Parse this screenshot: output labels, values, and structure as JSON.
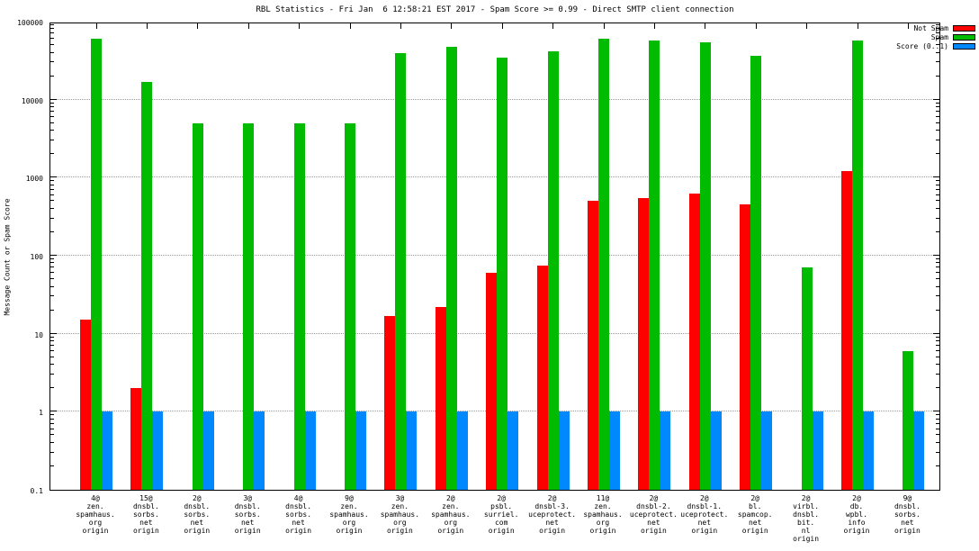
{
  "chart_data": {
    "type": "bar",
    "title": "RBL Statistics - Fri Jan  6 12:58:21 EST 2017 - Spam Score >= 0.99 - Direct SMTP client connection",
    "ylabel": "Message Count or Spam Score",
    "yscale": "log",
    "ylim": [
      0.1,
      100000
    ],
    "grid": true,
    "legend_position": "top-right",
    "yticks": [
      {
        "value": 100000,
        "label": "100000"
      },
      {
        "value": 10000,
        "label": "10000"
      },
      {
        "value": 1000,
        "label": "1000"
      },
      {
        "value": 100,
        "label": "100"
      },
      {
        "value": 10,
        "label": "10"
      },
      {
        "value": 1,
        "label": "1"
      },
      {
        "value": 0.1,
        "label": "0.1"
      }
    ],
    "categories": [
      [
        "4@",
        "zen.",
        "spamhaus.",
        "org",
        "origin"
      ],
      [
        "15@",
        "dnsbl.",
        "sorbs.",
        "net",
        "origin"
      ],
      [
        "2@",
        "dnsbl.",
        "sorbs.",
        "net",
        "origin"
      ],
      [
        "3@",
        "dnsbl.",
        "sorbs.",
        "net",
        "origin"
      ],
      [
        "4@",
        "dnsbl.",
        "sorbs.",
        "net",
        "origin"
      ],
      [
        "9@",
        "zen.",
        "spamhaus.",
        "org",
        "origin"
      ],
      [
        "3@",
        "zen.",
        "spamhaus.",
        "org",
        "origin"
      ],
      [
        "2@",
        "zen.",
        "spamhaus.",
        "org",
        "origin"
      ],
      [
        "2@",
        "psbl.",
        "surriel.",
        "com",
        "origin"
      ],
      [
        "2@",
        "dnsbl-3.",
        "uceprotect.",
        "net",
        "origin"
      ],
      [
        "11@",
        "zen.",
        "spamhaus.",
        "org",
        "origin"
      ],
      [
        "2@",
        "dnsbl-2.",
        "uceprotect.",
        "net",
        "origin"
      ],
      [
        "2@",
        "dnsbl-1.",
        "uceprotect.",
        "net",
        "origin"
      ],
      [
        "2@",
        "bl.",
        "spamcop.",
        "net",
        "origin"
      ],
      [
        "2@",
        "virbl.",
        "dnsbl.",
        "bit.",
        "nl",
        "origin"
      ],
      [
        "2@",
        "db.",
        "wpbl.",
        "info",
        "origin"
      ],
      [
        "9@",
        "dnsbl.",
        "sorbs.",
        "net",
        "origin"
      ]
    ],
    "series": [
      {
        "name": "Not Spam",
        "color": "#ff0000",
        "values": [
          15,
          2,
          null,
          null,
          null,
          null,
          17,
          22,
          60,
          75,
          500,
          550,
          620,
          460,
          null,
          1200,
          null
        ]
      },
      {
        "name": "Spam",
        "color": "#00bb00",
        "values": [
          60000,
          17000,
          5000,
          5000,
          5000,
          5000,
          40000,
          48000,
          35000,
          42000,
          60000,
          57000,
          55000,
          36000,
          70,
          57000,
          6
        ]
      },
      {
        "name": "Score (0..1)",
        "color": "#0088ff",
        "values": [
          1,
          1,
          1,
          1,
          1,
          1,
          1,
          1,
          1,
          1,
          1,
          1,
          1,
          1,
          1,
          1,
          1
        ]
      }
    ]
  }
}
